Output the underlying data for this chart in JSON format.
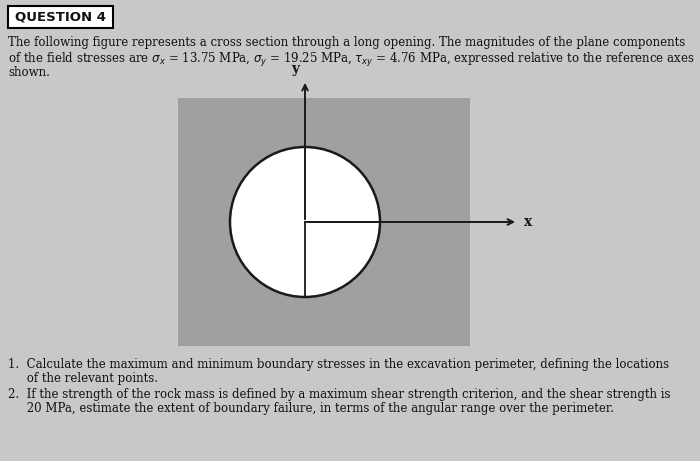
{
  "page_bg": "#c8c8c8",
  "square_color": "#a0a0a0",
  "circle_color": "#ffffff",
  "line_color": "#1a1a1a",
  "text_color": "#111111",
  "title": "QUESTION 4",
  "desc1": "The following figure represents a cross section through a long opening. The magnitudes of the plane components",
  "desc2": "of the field stresses are $\\sigma_x$ = 13.75 MPa, $\\sigma_y$ = 19.25 MPa, $\\tau_{xy}$ = 4.76 MPa, expressed relative to the reference axes",
  "desc3": "shown.",
  "q1a": "1.  Calculate the maximum and minimum boundary stresses in the excavation perimeter, defining the locations",
  "q1b": "     of the relevant points.",
  "q2a": "2.  If the strength of the rock mass is defined by a maximum shear strength criterion, and the shear strength is",
  "q2b": "     20 MPa, estimate the extent of boundary failure, in terms of the angular range over the perimeter.",
  "y_label": "y",
  "x_label": "x",
  "font_size_body": 8.5,
  "font_size_title": 9.5
}
